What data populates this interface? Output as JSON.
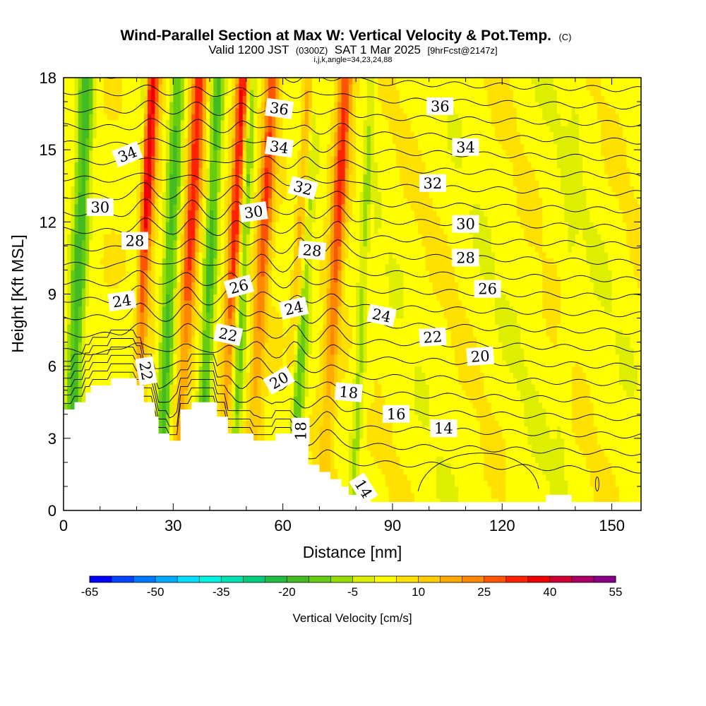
{
  "chart_data": {
    "type": "heatmap",
    "title": "Wind-Parallel Section at Max W: Vertical Velocity & Pot.Temp.",
    "copyright_mark": "(C)",
    "subtitle": {
      "valid_prefix": "Valid 1200 JST",
      "utc": "(0300Z)",
      "date": "SAT 1 Mar 2025",
      "forecast": "[9hrFcst@2147z]"
    },
    "section_params": "i,j,k,angle=34,23,24,88",
    "xlabel": "Distance [nm]",
    "ylabel": "Height [Kft MSL]",
    "xlim": [
      0,
      158
    ],
    "ylim": [
      0,
      18
    ],
    "x_ticks": [
      "0",
      "30",
      "60",
      "90",
      "120",
      "150"
    ],
    "x_tick_values": [
      0,
      30,
      60,
      90,
      120,
      150
    ],
    "y_ticks": [
      "0",
      "3",
      "6",
      "9",
      "12",
      "15",
      "18"
    ],
    "y_tick_values": [
      0,
      3,
      6,
      9,
      12,
      15,
      18
    ],
    "colorbar": {
      "title": "Vertical Velocity [cm/s]",
      "labels": [
        "-65",
        "-50",
        "-35",
        "-20",
        "-5",
        "10",
        "25",
        "40",
        "55"
      ],
      "label_values": [
        -65,
        -50,
        -35,
        -20,
        -5,
        10,
        25,
        40,
        55
      ],
      "bins": [
        -65,
        -60,
        -55,
        -50,
        -45,
        -40,
        -35,
        -30,
        -25,
        -20,
        -15,
        -10,
        -5,
        0,
        5,
        10,
        15,
        20,
        25,
        30,
        35,
        40,
        45,
        50,
        55
      ],
      "colors": [
        "#0000ff",
        "#0044ff",
        "#0077ff",
        "#00aaff",
        "#00dfff",
        "#00f2e0",
        "#00e0b0",
        "#00cc80",
        "#22bb44",
        "#44bb22",
        "#66cc11",
        "#99dd00",
        "#ddee00",
        "#ffff00",
        "#ffe000",
        "#ffcc00",
        "#ffaa00",
        "#ff8800",
        "#ff5500",
        "#ff2200",
        "#ee0000",
        "#cc0033",
        "#aa0066",
        "#880088",
        "#550099"
      ]
    },
    "terrain_kft": [
      [
        0,
        4.2
      ],
      [
        3,
        4.2
      ],
      [
        3,
        4.5
      ],
      [
        6,
        4.5
      ],
      [
        6,
        4.9
      ],
      [
        7.5,
        4.9
      ],
      [
        7.5,
        5.2
      ],
      [
        13,
        5.2
      ],
      [
        13,
        5.5
      ],
      [
        20,
        5.5
      ],
      [
        20,
        5.2
      ],
      [
        22,
        5.2
      ],
      [
        22,
        4.5
      ],
      [
        25,
        4.5
      ],
      [
        25,
        3.9
      ],
      [
        26,
        3.9
      ],
      [
        26,
        3.2
      ],
      [
        29,
        3.2
      ],
      [
        29,
        2.9
      ],
      [
        32,
        2.9
      ],
      [
        32,
        4.2
      ],
      [
        35,
        4.2
      ],
      [
        35,
        4.5
      ],
      [
        42,
        4.5
      ],
      [
        42,
        3.9
      ],
      [
        45,
        3.9
      ],
      [
        45,
        3.2
      ],
      [
        52,
        3.2
      ],
      [
        52,
        2.9
      ],
      [
        58,
        2.9
      ],
      [
        58,
        3.2
      ],
      [
        63,
        3.2
      ],
      [
        63,
        2.9
      ],
      [
        67,
        2.9
      ],
      [
        67,
        1.9
      ],
      [
        70,
        1.9
      ],
      [
        70,
        1.6
      ],
      [
        73,
        1.6
      ],
      [
        73,
        1.3
      ],
      [
        76,
        1.3
      ],
      [
        76,
        1.0
      ],
      [
        78,
        1.0
      ],
      [
        78,
        0.65
      ],
      [
        84,
        0.65
      ],
      [
        84,
        0.35
      ],
      [
        88,
        0.35
      ],
      [
        88,
        0.35
      ],
      [
        132,
        0.35
      ],
      [
        132,
        0.65
      ],
      [
        139,
        0.65
      ],
      [
        139,
        0.35
      ],
      [
        158,
        0.35
      ]
    ],
    "updrafts": [
      {
        "x": 20,
        "w": 2.2,
        "amp": 38,
        "note": "red column"
      },
      {
        "x": 33,
        "w": 2.0,
        "amp": 30
      },
      {
        "x": 45,
        "w": 1.8,
        "amp": 32
      },
      {
        "x": 53,
        "w": 2.0,
        "amp": 26
      },
      {
        "x": 63,
        "w": 1.6,
        "amp": 34
      },
      {
        "x": 73,
        "w": 2.0,
        "amp": 28
      }
    ],
    "downdrafts": [
      {
        "x": 3,
        "w": 2.2,
        "amp": -22
      },
      {
        "x": 19,
        "w": 1.5,
        "amp": -18
      },
      {
        "x": 28,
        "w": 2.0,
        "amp": -20
      },
      {
        "x": 39,
        "w": 1.8,
        "amp": -20
      },
      {
        "x": 48,
        "w": 1.5,
        "amp": -16
      },
      {
        "x": 64,
        "w": 2.2,
        "amp": -24
      },
      {
        "x": 81,
        "w": 1.5,
        "amp": -10
      },
      {
        "x": 137,
        "w": 1.5,
        "amp": -8
      }
    ],
    "theta_contours": {
      "levels": [
        14,
        15,
        16,
        17,
        18,
        19,
        20,
        21,
        22,
        23,
        24,
        25,
        26,
        27,
        28,
        29,
        30,
        31,
        32,
        33,
        34,
        35,
        36,
        37
      ],
      "labels": [
        {
          "text": "36",
          "x": 59,
          "y": 16.7,
          "rot": 8
        },
        {
          "text": "36",
          "x": 103,
          "y": 16.8,
          "rot": 0
        },
        {
          "text": "34",
          "x": 17.5,
          "y": 14.8,
          "rot": -22
        },
        {
          "text": "34",
          "x": 59,
          "y": 15.1,
          "rot": 8
        },
        {
          "text": "34",
          "x": 110,
          "y": 15.1,
          "rot": 0
        },
        {
          "text": "32",
          "x": 65.5,
          "y": 13.4,
          "rot": 15
        },
        {
          "text": "32",
          "x": 101,
          "y": 13.6,
          "rot": 0
        },
        {
          "text": "30",
          "x": 10,
          "y": 12.6,
          "rot": 0
        },
        {
          "text": "30",
          "x": 52,
          "y": 12.4,
          "rot": -8
        },
        {
          "text": "30",
          "x": 110,
          "y": 11.9,
          "rot": 0
        },
        {
          "text": "28",
          "x": 19.5,
          "y": 11.2,
          "rot": 0
        },
        {
          "text": "28",
          "x": 68,
          "y": 10.8,
          "rot": 5
        },
        {
          "text": "28",
          "x": 110,
          "y": 10.5,
          "rot": 0
        },
        {
          "text": "26",
          "x": 48,
          "y": 9.3,
          "rot": -15
        },
        {
          "text": "26",
          "x": 116,
          "y": 9.2,
          "rot": 0
        },
        {
          "text": "24",
          "x": 16,
          "y": 8.7,
          "rot": -8
        },
        {
          "text": "24",
          "x": 63,
          "y": 8.4,
          "rot": -12
        },
        {
          "text": "24",
          "x": 87,
          "y": 8.1,
          "rot": 12
        },
        {
          "text": "22",
          "x": 45,
          "y": 7.3,
          "rot": 12
        },
        {
          "text": "22",
          "x": 101,
          "y": 7.2,
          "rot": -4
        },
        {
          "text": "22",
          "x": 22.5,
          "y": 5.8,
          "rot": 80
        },
        {
          "text": "20",
          "x": 59,
          "y": 5.4,
          "rot": -30
        },
        {
          "text": "20",
          "x": 114,
          "y": 6.4,
          "rot": -4
        },
        {
          "text": "18",
          "x": 78,
          "y": 4.9,
          "rot": 5
        },
        {
          "text": "18",
          "x": 65,
          "y": 3.3,
          "rot": -90
        },
        {
          "text": "16",
          "x": 91,
          "y": 4.0,
          "rot": 0
        },
        {
          "text": "14",
          "x": 104,
          "y": 3.4,
          "rot": 0
        },
        {
          "text": "14",
          "x": 82,
          "y": 0.9,
          "rot": 58
        }
      ]
    },
    "grid": false
  }
}
